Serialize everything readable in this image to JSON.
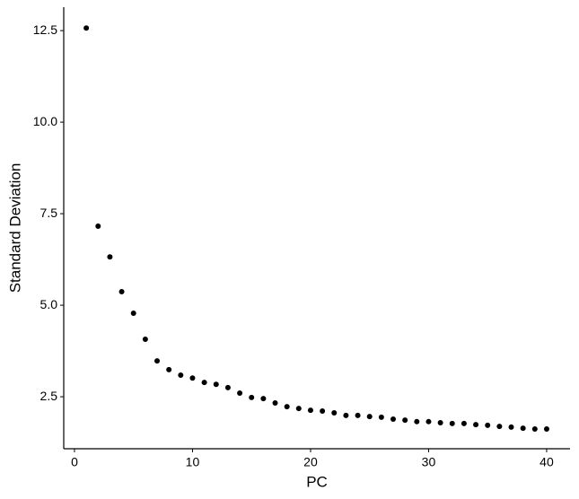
{
  "chart_data": {
    "type": "scatter",
    "x_label": "PC",
    "y_label": "Standard Deviation",
    "x": [
      1,
      2,
      3,
      4,
      5,
      6,
      7,
      8,
      9,
      10,
      11,
      12,
      13,
      14,
      15,
      16,
      17,
      18,
      19,
      20,
      21,
      22,
      23,
      24,
      25,
      26,
      27,
      28,
      29,
      30,
      31,
      32,
      33,
      34,
      35,
      36,
      37,
      38,
      39,
      40
    ],
    "values": [
      12.57,
      7.16,
      6.32,
      5.37,
      4.78,
      4.07,
      3.48,
      3.24,
      3.09,
      3.01,
      2.89,
      2.84,
      2.75,
      2.6,
      2.48,
      2.45,
      2.33,
      2.23,
      2.18,
      2.13,
      2.11,
      2.06,
      1.99,
      1.99,
      1.96,
      1.94,
      1.89,
      1.86,
      1.82,
      1.82,
      1.79,
      1.77,
      1.77,
      1.74,
      1.72,
      1.69,
      1.67,
      1.64,
      1.62,
      1.62
    ],
    "color": "#000000",
    "xlim": [
      -0.91,
      41.98
    ],
    "xticks": [
      0,
      10,
      20,
      30,
      40
    ],
    "ylim": [
      1.08,
      13.14
    ],
    "yticks": [
      2.5,
      {
        "value": 5,
        "label": "5.0"
      },
      7.5,
      {
        "value": 10,
        "label": "10.0"
      },
      12.5
    ],
    "grid": false
  }
}
